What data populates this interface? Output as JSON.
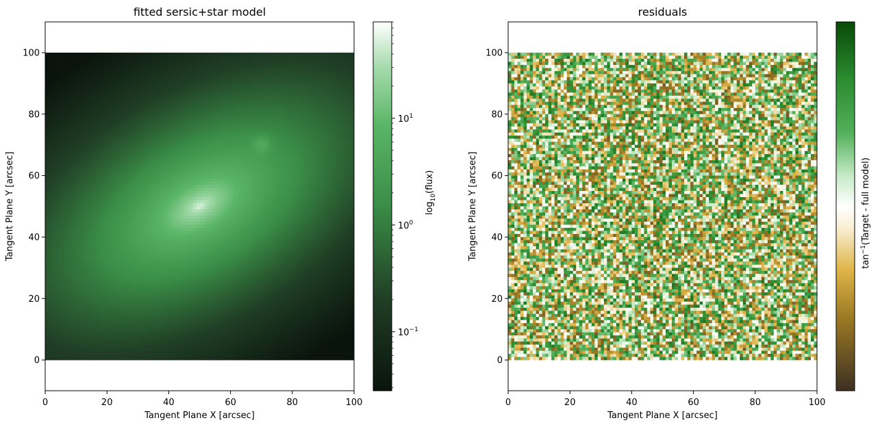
{
  "chart_data": [
    {
      "type": "heatmap",
      "title": "fitted sersic+star model",
      "xlabel": "Tangent Plane X [arcsec]",
      "ylabel": "Tangent Plane Y [arcsec]",
      "xlim": [
        0,
        100
      ],
      "ylim": [
        -10,
        110
      ],
      "image_extent": [
        0,
        100,
        0,
        100
      ],
      "xticks": [
        0,
        20,
        40,
        60,
        80,
        100
      ],
      "yticks": [
        0,
        20,
        40,
        60,
        80,
        100
      ],
      "xtick_labels": [
        "0",
        "20",
        "40",
        "60",
        "80",
        "100"
      ],
      "ytick_labels": [
        "0",
        "20",
        "40",
        "60",
        "80",
        "100"
      ],
      "colormap": "green",
      "colors": {
        "low": "#0a140c",
        "mid": "#3a8d47",
        "high": "#ffffff"
      },
      "components": [
        {
          "name": "sersic",
          "x_center": 50,
          "y_center": 50,
          "position_angle_deg": 30,
          "axis_ratio": 0.55,
          "peak_flux": 70
        },
        {
          "name": "star",
          "x_center": 70,
          "y_center": 70,
          "peak_flux": 3
        }
      ],
      "colorbar": {
        "label_prefix": "log",
        "label_sub": "10",
        "label_suffix": "(flux)",
        "scale": "log",
        "range": [
          0.028,
          80
        ],
        "ticks": [
          0.1,
          1,
          10
        ],
        "tick_labels": [
          {
            "base": "10",
            "exp": "−1"
          },
          {
            "base": "10",
            "exp": "0"
          },
          {
            "base": "10",
            "exp": "1"
          }
        ]
      }
    },
    {
      "type": "heatmap",
      "title": "residuals",
      "xlabel": "Tangent Plane X [arcsec]",
      "ylabel": "Tangent Plane Y [arcsec]",
      "xlim": [
        0,
        100
      ],
      "ylim": [
        -10,
        110
      ],
      "image_extent": [
        0,
        100,
        0,
        100
      ],
      "xticks": [
        0,
        20,
        40,
        60,
        80,
        100
      ],
      "yticks": [
        0,
        20,
        40,
        60,
        80,
        100
      ],
      "xtick_labels": [
        "0",
        "20",
        "40",
        "60",
        "80",
        "100"
      ],
      "ytick_labels": [
        "0",
        "20",
        "40",
        "60",
        "80",
        "100"
      ],
      "grid_cells": 100,
      "distribution": "random noise",
      "colormap": "diverging brown-white-green",
      "colors": {
        "low": "#3d3022",
        "mid_low": "#e0b64a",
        "mid": "#ffffff",
        "mid_high": "#3d9945",
        "high": "#084a08"
      },
      "colorbar": {
        "label_prefix": "tan",
        "label_sup": "−1",
        "label_suffix": "(Target - full model)",
        "scale": "linear",
        "ticks": [],
        "tick_labels": []
      }
    }
  ]
}
